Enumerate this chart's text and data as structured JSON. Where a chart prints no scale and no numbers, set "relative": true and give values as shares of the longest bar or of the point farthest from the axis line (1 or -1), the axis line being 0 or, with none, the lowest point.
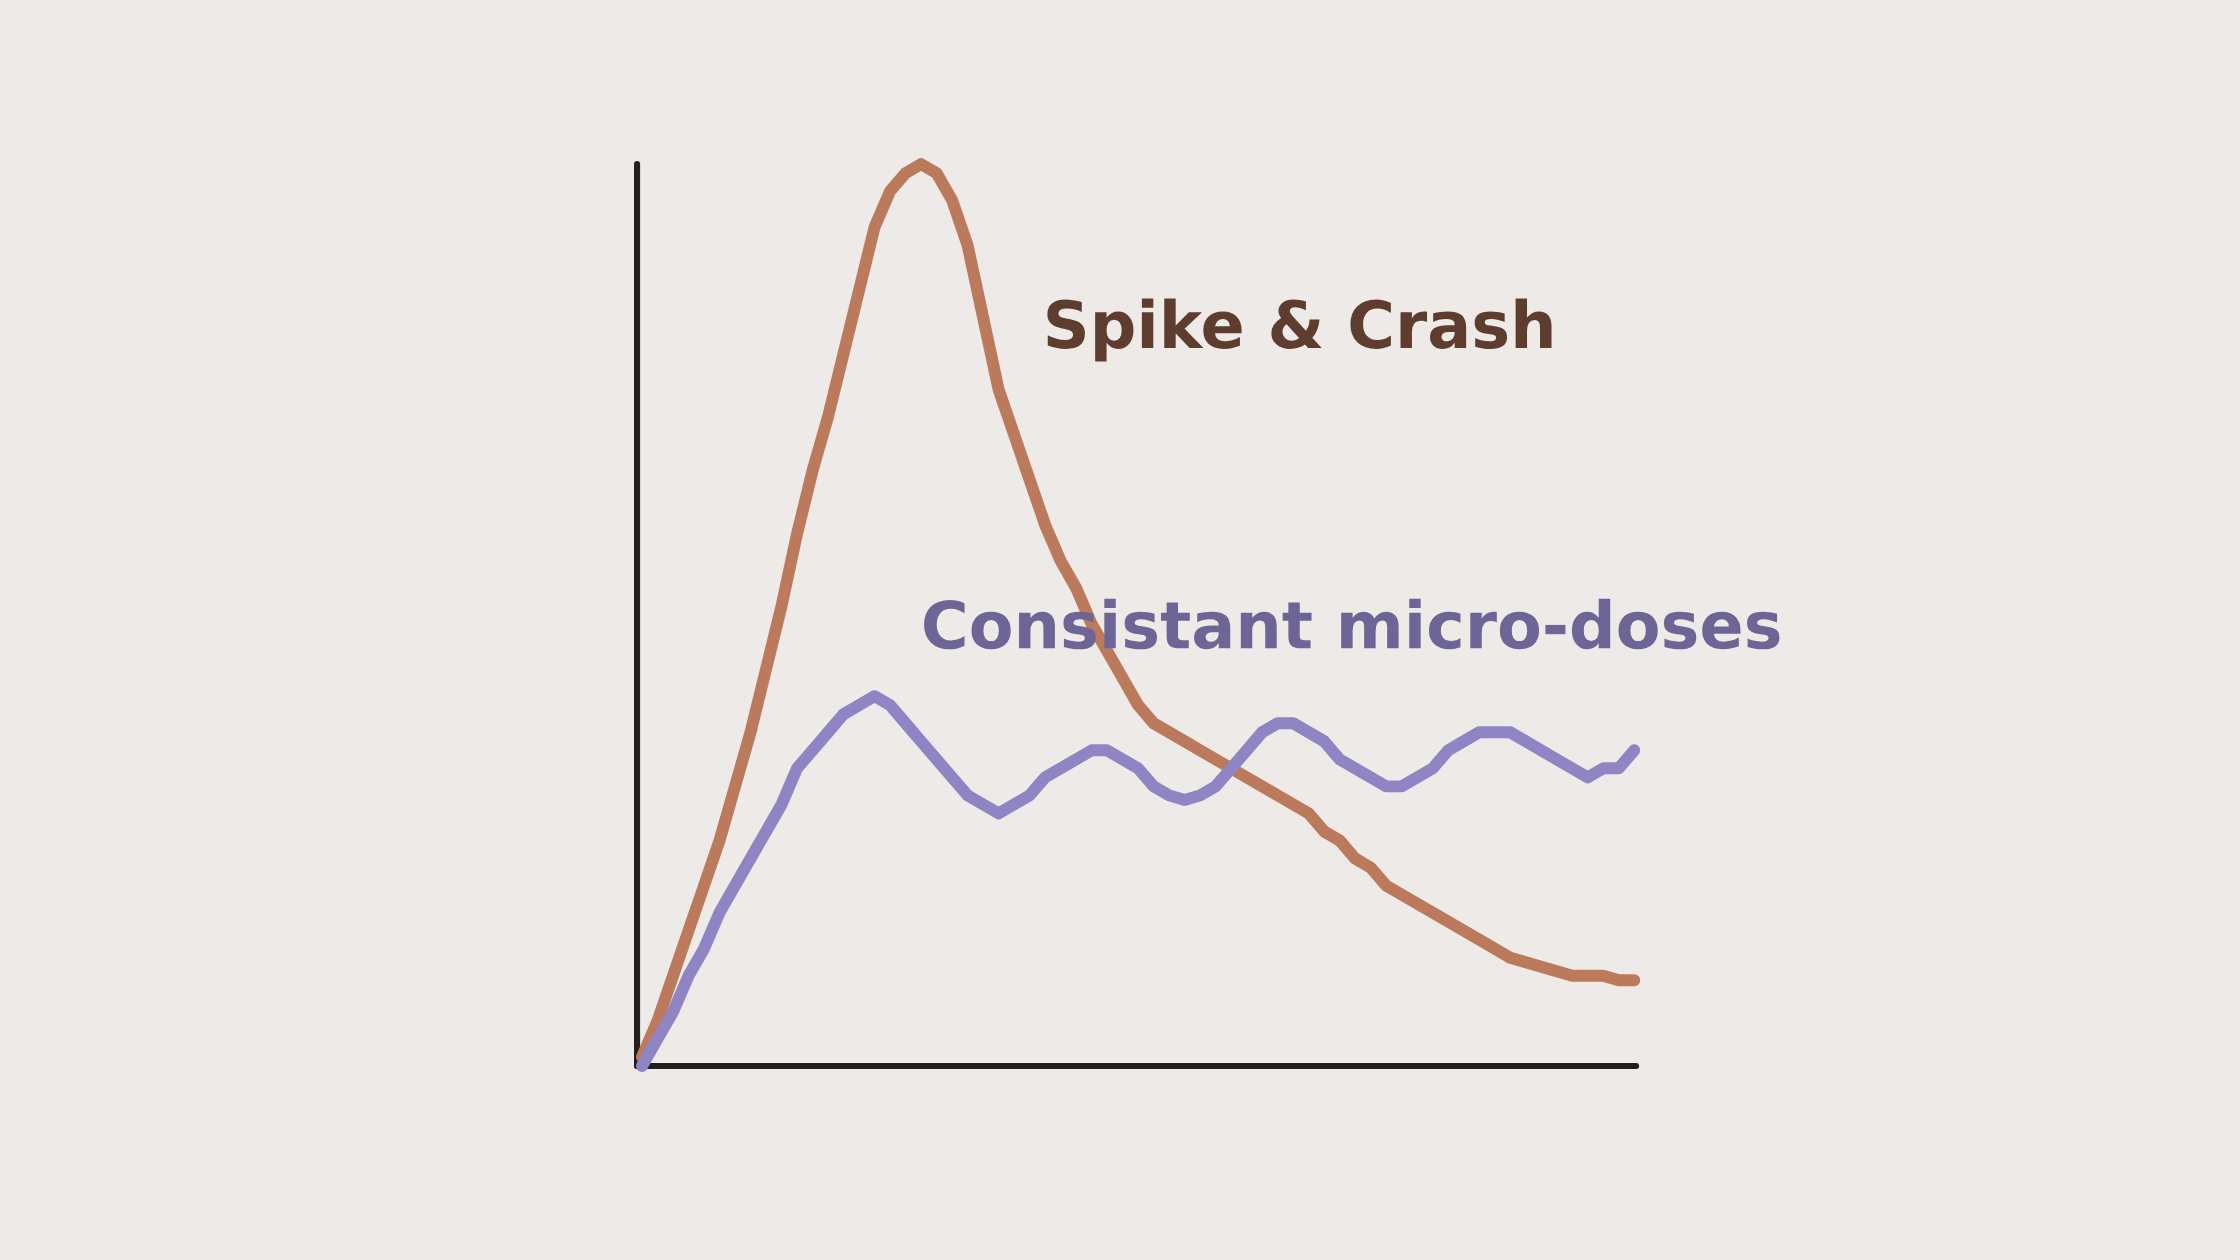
{
  "chart_data": {
    "type": "line",
    "relative": true,
    "categories": [
      null,
      null,
      null,
      null,
      null,
      null,
      null,
      null,
      null,
      null,
      null,
      null,
      null,
      null,
      null,
      null,
      null,
      null,
      null,
      null,
      null,
      null,
      null,
      null,
      null,
      null,
      null,
      null,
      null,
      null,
      null,
      null,
      null,
      null,
      null,
      null,
      null,
      null,
      null,
      null,
      null,
      null,
      null,
      null,
      null,
      null,
      null,
      null,
      null,
      null,
      null,
      null,
      null,
      null,
      null,
      null,
      null,
      null,
      null,
      null,
      null,
      null,
      null,
      null,
      null
    ],
    "series": [
      {
        "name": "Spike & Crash",
        "color": "#bb7a5c",
        "values": [
          0.01,
          0.05,
          0.1,
          0.15,
          0.2,
          0.25,
          0.31,
          0.37,
          0.44,
          0.51,
          0.59,
          0.66,
          0.72,
          0.79,
          0.86,
          0.93,
          0.97,
          0.99,
          1.0,
          0.99,
          0.96,
          0.91,
          0.83,
          0.75,
          0.7,
          0.65,
          0.6,
          0.56,
          0.53,
          0.49,
          0.46,
          0.43,
          0.4,
          0.38,
          0.37,
          0.36,
          0.35,
          0.34,
          0.33,
          0.32,
          0.31,
          0.3,
          0.29,
          0.28,
          0.26,
          0.25,
          0.23,
          0.22,
          0.2,
          0.19,
          0.18,
          0.17,
          0.16,
          0.15,
          0.14,
          0.13,
          0.12,
          0.115,
          0.11,
          0.105,
          0.1,
          0.1,
          0.1,
          0.095,
          0.095
        ]
      },
      {
        "name": "Consistant micro-doses",
        "color": "#8f85c4",
        "values": [
          0.0,
          0.03,
          0.06,
          0.1,
          0.13,
          0.17,
          0.2,
          0.23,
          0.26,
          0.29,
          0.33,
          0.35,
          0.37,
          0.39,
          0.4,
          0.41,
          0.4,
          0.38,
          0.36,
          0.34,
          0.32,
          0.3,
          0.29,
          0.28,
          0.29,
          0.3,
          0.32,
          0.33,
          0.34,
          0.35,
          0.35,
          0.34,
          0.33,
          0.31,
          0.3,
          0.295,
          0.3,
          0.31,
          0.33,
          0.35,
          0.37,
          0.38,
          0.38,
          0.37,
          0.36,
          0.34,
          0.33,
          0.32,
          0.31,
          0.31,
          0.32,
          0.33,
          0.35,
          0.36,
          0.37,
          0.37,
          0.37,
          0.36,
          0.35,
          0.34,
          0.33,
          0.32,
          0.33,
          0.33,
          0.35
        ]
      }
    ]
  }
}
